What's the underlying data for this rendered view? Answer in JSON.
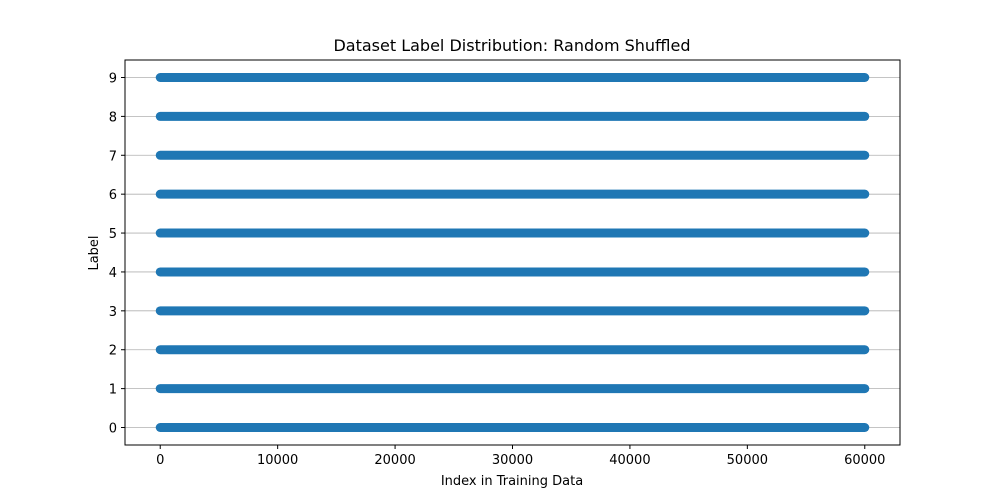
{
  "chart_data": {
    "type": "scatter",
    "title": "Dataset Label Distribution: Random Shuffled",
    "xlabel": "Index in Training Data",
    "ylabel": "Label",
    "xlim": [
      -3000,
      63000
    ],
    "ylim": [
      -0.45,
      9.45
    ],
    "xticks": [
      0,
      10000,
      20000,
      30000,
      40000,
      50000,
      60000
    ],
    "xtick_labels": [
      "0",
      "10000",
      "20000",
      "30000",
      "40000",
      "50000",
      "60000"
    ],
    "yticks": [
      0,
      1,
      2,
      3,
      4,
      5,
      6,
      7,
      8,
      9
    ],
    "ytick_labels": [
      "0",
      "1",
      "2",
      "3",
      "4",
      "5",
      "6",
      "7",
      "8",
      "9"
    ],
    "grid": "y",
    "series": [
      {
        "color": "#1f77b4",
        "x_range": [
          0,
          60000
        ],
        "labels": [
          0,
          1,
          2,
          3,
          4,
          5,
          6,
          7,
          8,
          9
        ]
      }
    ]
  }
}
